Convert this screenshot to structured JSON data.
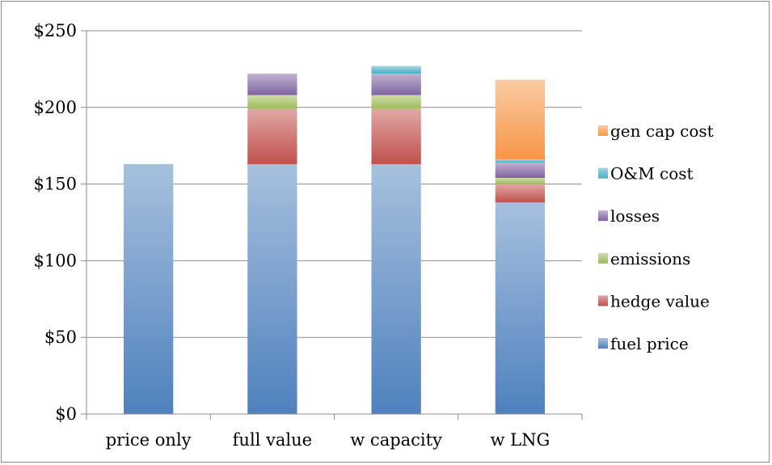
{
  "chart_data": {
    "type": "bar",
    "stacked": true,
    "categories": [
      "price only",
      "full value",
      "w capacity",
      "w LNG"
    ],
    "series": [
      {
        "name": "fuel price",
        "color": "#4f81bd",
        "values": [
          163,
          163,
          163,
          138
        ]
      },
      {
        "name": "hedge value",
        "color": "#c0504d",
        "values": [
          0,
          36,
          36,
          12
        ]
      },
      {
        "name": "emissions",
        "color": "#9bbb59",
        "values": [
          0,
          9,
          9,
          4
        ]
      },
      {
        "name": "losses",
        "color": "#8064a2",
        "values": [
          0,
          14,
          14,
          10
        ]
      },
      {
        "name": "O&M cost",
        "color": "#4bacc6",
        "values": [
          0,
          0,
          5,
          2
        ]
      },
      {
        "name": "gen cap cost",
        "color": "#f79646",
        "values": [
          0,
          0,
          0,
          52
        ]
      }
    ],
    "yticks": [
      "$0",
      "$50",
      "$100",
      "$150",
      "$200",
      "$250"
    ],
    "ylim": [
      0,
      250
    ],
    "grid": true,
    "legend_position": "right"
  }
}
